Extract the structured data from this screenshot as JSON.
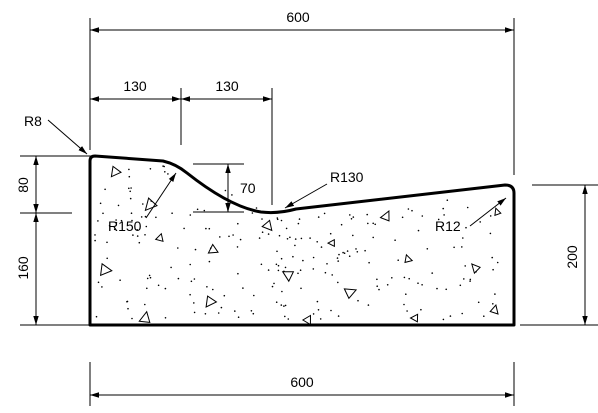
{
  "dimensions": {
    "top_overall": "600",
    "top_left_segment": "130",
    "top_mid_segment": "130",
    "bottom_overall": "600",
    "left_upper": "80",
    "left_lower": "160",
    "right_height": "200",
    "inner_drop": "70"
  },
  "radii": {
    "corner_left": "R8",
    "convex": "R150",
    "concave": "R130",
    "corner_right": "R12"
  }
}
